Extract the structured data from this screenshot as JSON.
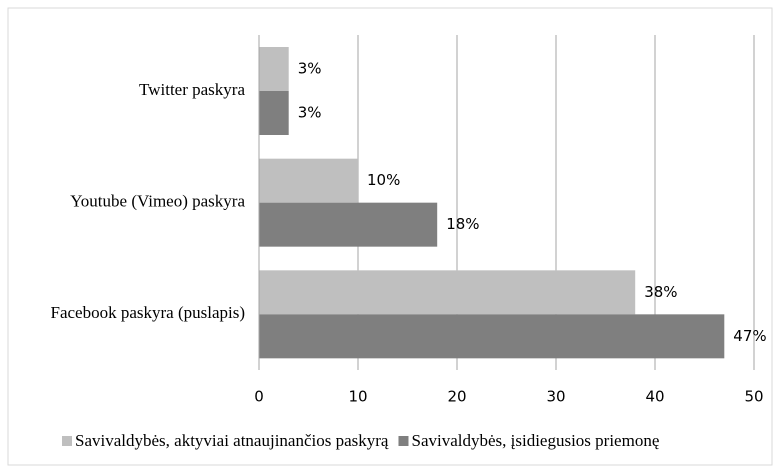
{
  "chart_data": {
    "type": "barh",
    "categories": [
      "Twitter paskyra",
      "Youtube (Vimeo) paskyra",
      "Facebook paskyra (puslapis)"
    ],
    "series": [
      {
        "name": "Savivaldybės, aktyviai atnaujinančios paskyrą",
        "color": "#bfbfbf",
        "values": [
          3,
          10,
          38
        ],
        "value_labels": [
          "3%",
          "10%",
          "38%"
        ]
      },
      {
        "name": "Savivaldybės, įsidiegusios priemonę",
        "color": "#7f7f7f",
        "values": [
          3,
          18,
          47
        ],
        "value_labels": [
          "3%",
          "18%",
          "47%"
        ]
      }
    ],
    "xlim": [
      0,
      50
    ],
    "xticks": [
      0,
      10,
      20,
      30,
      40,
      50
    ],
    "grid": true,
    "legend": "bottom"
  }
}
